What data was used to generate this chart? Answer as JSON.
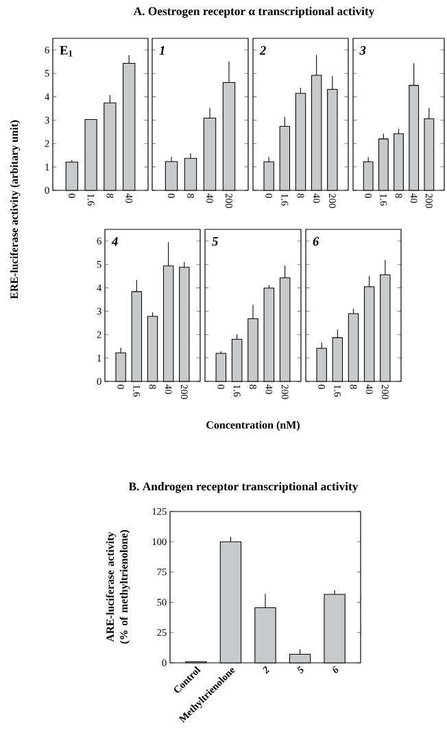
{
  "chart_data": [
    {
      "type": "bar",
      "ylabel": "ERE-luciferase activity (arbitary unit)",
      "annotations": [
        "E$_{1}$"
      ],
      "categories": [
        "0",
        "1.6",
        "8",
        "40"
      ],
      "values": [
        1.21,
        3.03,
        3.74,
        5.43
      ],
      "errors": [
        0.09,
        null,
        0.34,
        0.35
      ],
      "color": "#c8c9ca",
      "ylim": [
        0,
        6.5
      ],
      "yticks": [
        0,
        1,
        2,
        3,
        4,
        5,
        6
      ]
    },
    {
      "type": "bar",
      "annotations": [
        "*1*"
      ],
      "categories": [
        "0",
        "8",
        "40",
        "200"
      ],
      "values": [
        1.23,
        1.37,
        3.09,
        4.61
      ],
      "errors": [
        0.2,
        0.21,
        0.44,
        0.9
      ],
      "color": "#c8c9ca",
      "ylim": [
        0,
        6.5
      ],
      "yticks": [
        0,
        1,
        2,
        3,
        4,
        5,
        6
      ],
      "tick_labels": "x"
    },
    {
      "type": "bar",
      "title": "A.  Oestrogen receptor α transcriptional activity",
      "annotations": [
        "*2*"
      ],
      "categories": [
        "0",
        "1.6",
        "8",
        "40",
        "200"
      ],
      "values": [
        1.22,
        2.74,
        4.15,
        4.92,
        4.32
      ],
      "errors": [
        0.21,
        0.4,
        0.24,
        0.87,
        0.57
      ],
      "color": "#c8c9ca",
      "ylim": [
        0,
        6.5
      ],
      "yticks": [
        0,
        1,
        2,
        3,
        4,
        5,
        6
      ],
      "tick_labels": "x"
    },
    {
      "type": "bar",
      "annotations": [
        "*3*"
      ],
      "categories": [
        "0",
        "1.6",
        "8",
        "40",
        "200"
      ],
      "values": [
        1.22,
        2.2,
        2.42,
        4.49,
        3.06
      ],
      "errors": [
        0.21,
        0.22,
        0.21,
        0.95,
        0.47
      ],
      "color": "#c8c9ca",
      "ylim": [
        0,
        6.5
      ],
      "yticks": [
        0,
        1,
        2,
        3,
        4,
        5,
        6
      ],
      "tick_labels": "x"
    },
    {
      "type": "bar",
      "annotations": [
        "*4*"
      ],
      "categories": [
        "0",
        "1.6",
        "8",
        "40",
        "200"
      ],
      "values": [
        1.22,
        3.84,
        2.78,
        4.94,
        4.88
      ],
      "errors": [
        0.22,
        0.5,
        0.18,
        1.01,
        0.23
      ],
      "color": "#c8c9ca",
      "ylim": [
        0,
        6.5
      ],
      "yticks": [
        0,
        1,
        2,
        3,
        4,
        5,
        6
      ]
    },
    {
      "type": "bar",
      "xlabel": "Concentration (nM)",
      "annotations": [
        "*5*"
      ],
      "categories": [
        "0",
        "1.6",
        "8",
        "40",
        "200"
      ],
      "values": [
        1.2,
        1.8,
        2.68,
        3.99,
        4.43
      ],
      "errors": [
        0.09,
        0.21,
        0.59,
        0.12,
        0.52
      ],
      "color": "#c8c9ca",
      "ylim": [
        0,
        6.5
      ],
      "yticks": [
        0,
        1,
        2,
        3,
        4,
        5,
        6
      ],
      "tick_labels": "x"
    },
    {
      "type": "bar",
      "annotations": [
        "*6*"
      ],
      "categories": [
        "0",
        "1.6",
        "8",
        "40",
        "200"
      ],
      "values": [
        1.41,
        1.87,
        2.9,
        4.05,
        4.56
      ],
      "errors": [
        0.25,
        0.35,
        0.21,
        0.45,
        0.62
      ],
      "color": "#c8c9ca",
      "ylim": [
        0,
        6.5
      ],
      "yticks": [
        0,
        1,
        2,
        3,
        4,
        5,
        6
      ],
      "tick_labels": "x"
    },
    {
      "type": "bar",
      "title": "B.  Androgen receptor transcriptional activity",
      "ylabel": "ARE-luciferase activity (% of methyltrienolone)",
      "categories": [
        "Control",
        "Methyltrienolone",
        "*2*",
        "*5*",
        "*6*"
      ],
      "values": [
        1,
        100,
        45.5,
        7.1,
        56.6
      ],
      "errors": [
        null,
        4,
        11.5,
        4,
        3.4
      ],
      "color": "#c8c9ca",
      "ylim": [
        0,
        125
      ],
      "yticks": [
        0,
        25,
        50,
        75,
        100,
        125
      ]
    }
  ]
}
